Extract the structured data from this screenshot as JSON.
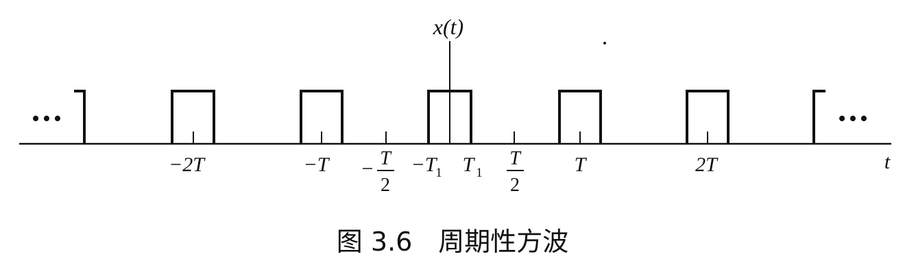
{
  "figure": {
    "signal_label": "x(t)",
    "axis_var": "t",
    "dots_left": "•••",
    "dots_right": "•••",
    "ticks": {
      "minus_2T": "−2T",
      "minus_T": "−T",
      "minus_half_T_num": "T",
      "minus_half_T_den": "2",
      "minus_half_T_sign": "−",
      "minus_T1_main": "−T",
      "minus_T1_sub": "1",
      "T1_main": "T",
      "T1_sub": "1",
      "half_T_num": "T",
      "half_T_den": "2",
      "T": "T",
      "two_T": "2T"
    },
    "caption": "图 3.6　周期性方波"
  },
  "colors": {
    "ink": "#111111",
    "background": "#ffffff"
  }
}
